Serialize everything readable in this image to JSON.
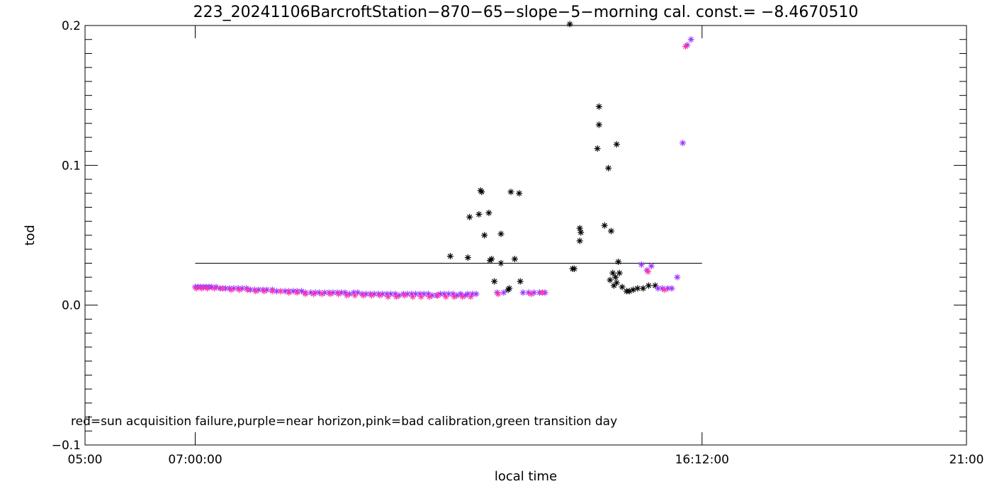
{
  "chart_data": {
    "type": "scatter",
    "title": "223_20241106BarcroftStation−870−65−slope−5−morning  cal. const.= −8.4670510",
    "xlabel": "local time",
    "ylabel": "tod",
    "annotation": "red=sun acquisition failure,purple=near horizon,pink=bad calibration,green transition day",
    "xlim": [
      5,
      21
    ],
    "ylim": [
      -0.1,
      0.2
    ],
    "x_tick_labels": [
      {
        "x": 5,
        "label": "05:00"
      },
      {
        "x": 7,
        "label": "07:00:00"
      },
      {
        "x": 16.2,
        "label": "16:12:00"
      },
      {
        "x": 21,
        "label": "21:00"
      }
    ],
    "y_tick_labels": [
      {
        "y": -0.1,
        "label": "−0.1"
      },
      {
        "y": 0.0,
        "label": "0.0"
      },
      {
        "y": 0.1,
        "label": "0.1"
      },
      {
        "y": 0.2,
        "label": "0.2"
      }
    ],
    "grid": false,
    "reference_line": {
      "x_start": 7.0,
      "x_end": 16.2,
      "y": 0.03
    },
    "colors": {
      "accepted": "#000000",
      "near_horizon": "#9933ff",
      "bad_calibration": "#ff33aa"
    },
    "series": [
      {
        "category": "accepted",
        "color": "#000000",
        "points": [
          [
            11.63,
            0.035
          ],
          [
            11.98,
            0.063
          ],
          [
            11.95,
            0.034
          ],
          [
            12.18,
            0.082
          ],
          [
            12.2,
            0.081
          ],
          [
            12.15,
            0.065
          ],
          [
            12.25,
            0.05
          ],
          [
            12.33,
            0.066
          ],
          [
            12.38,
            0.033
          ],
          [
            12.35,
            0.032
          ],
          [
            12.43,
            0.017
          ],
          [
            12.55,
            0.051
          ],
          [
            12.55,
            0.03
          ],
          [
            12.73,
            0.081
          ],
          [
            12.88,
            0.08
          ],
          [
            12.8,
            0.033
          ],
          [
            12.9,
            0.017
          ],
          [
            12.7,
            0.012
          ],
          [
            12.68,
            0.011
          ],
          [
            13.8,
            0.201
          ],
          [
            13.98,
            0.055
          ],
          [
            13.98,
            0.046
          ],
          [
            14.0,
            0.052
          ],
          [
            13.85,
            0.026
          ],
          [
            13.88,
            0.026
          ],
          [
            14.33,
            0.142
          ],
          [
            14.33,
            0.129
          ],
          [
            14.3,
            0.112
          ],
          [
            14.65,
            0.115
          ],
          [
            14.5,
            0.098
          ],
          [
            14.43,
            0.057
          ],
          [
            14.55,
            0.053
          ],
          [
            14.68,
            0.031
          ],
          [
            14.7,
            0.023
          ],
          [
            14.53,
            0.018
          ],
          [
            14.58,
            0.023
          ],
          [
            14.6,
            0.014
          ],
          [
            14.63,
            0.02
          ],
          [
            14.65,
            0.016
          ],
          [
            14.75,
            0.013
          ],
          [
            14.83,
            0.01
          ],
          [
            14.88,
            0.01
          ],
          [
            14.95,
            0.011
          ],
          [
            15.03,
            0.012
          ],
          [
            15.13,
            0.012
          ],
          [
            15.23,
            0.014
          ],
          [
            15.35,
            0.014
          ]
        ]
      },
      {
        "category": "flagged",
        "color": "#9933ff",
        "points": [
          [
            7.0,
            0.013
          ],
          [
            7.05,
            0.013
          ],
          [
            7.1,
            0.013
          ],
          [
            7.15,
            0.013
          ],
          [
            7.2,
            0.013
          ],
          [
            7.25,
            0.013
          ],
          [
            7.3,
            0.013
          ],
          [
            7.38,
            0.013
          ],
          [
            7.45,
            0.012
          ],
          [
            7.55,
            0.012
          ],
          [
            7.62,
            0.012
          ],
          [
            7.7,
            0.012
          ],
          [
            7.78,
            0.012
          ],
          [
            7.85,
            0.012
          ],
          [
            7.93,
            0.012
          ],
          [
            8.0,
            0.011
          ],
          [
            8.08,
            0.011
          ],
          [
            8.15,
            0.011
          ],
          [
            8.23,
            0.011
          ],
          [
            8.3,
            0.011
          ],
          [
            8.4,
            0.011
          ],
          [
            8.48,
            0.01
          ],
          [
            8.55,
            0.01
          ],
          [
            8.63,
            0.01
          ],
          [
            8.7,
            0.01
          ],
          [
            8.78,
            0.01
          ],
          [
            8.85,
            0.01
          ],
          [
            8.93,
            0.01
          ],
          [
            9.0,
            0.009
          ],
          [
            9.1,
            0.009
          ],
          [
            9.18,
            0.009
          ],
          [
            9.25,
            0.009
          ],
          [
            9.35,
            0.009
          ],
          [
            9.43,
            0.009
          ],
          [
            9.5,
            0.009
          ],
          [
            9.58,
            0.009
          ],
          [
            9.65,
            0.009
          ],
          [
            9.72,
            0.009
          ],
          [
            9.8,
            0.008
          ],
          [
            9.88,
            0.009
          ],
          [
            9.95,
            0.009
          ],
          [
            10.03,
            0.008
          ],
          [
            10.1,
            0.008
          ],
          [
            10.18,
            0.008
          ],
          [
            10.25,
            0.008
          ],
          [
            10.33,
            0.008
          ],
          [
            10.4,
            0.008
          ],
          [
            10.48,
            0.008
          ],
          [
            10.55,
            0.008
          ],
          [
            10.63,
            0.008
          ],
          [
            10.7,
            0.007
          ],
          [
            10.78,
            0.008
          ],
          [
            10.85,
            0.008
          ],
          [
            10.93,
            0.008
          ],
          [
            11.0,
            0.008
          ],
          [
            11.08,
            0.008
          ],
          [
            11.15,
            0.008
          ],
          [
            11.23,
            0.008
          ],
          [
            11.3,
            0.007
          ],
          [
            11.38,
            0.007
          ],
          [
            11.45,
            0.008
          ],
          [
            11.52,
            0.008
          ],
          [
            11.6,
            0.008
          ],
          [
            11.68,
            0.008
          ],
          [
            11.75,
            0.007
          ],
          [
            11.82,
            0.008
          ],
          [
            11.9,
            0.007
          ],
          [
            11.95,
            0.008
          ],
          [
            12.03,
            0.008
          ],
          [
            12.1,
            0.008
          ],
          [
            12.48,
            0.009
          ],
          [
            12.6,
            0.009
          ],
          [
            12.95,
            0.009
          ],
          [
            13.05,
            0.009
          ],
          [
            13.15,
            0.009
          ],
          [
            13.25,
            0.009
          ],
          [
            13.35,
            0.009
          ],
          [
            15.1,
            0.029
          ],
          [
            15.2,
            0.025
          ],
          [
            15.28,
            0.028
          ],
          [
            15.4,
            0.012
          ],
          [
            15.48,
            0.012
          ],
          [
            15.58,
            0.012
          ],
          [
            15.65,
            0.012
          ],
          [
            15.75,
            0.02
          ],
          [
            15.85,
            0.116
          ],
          [
            15.93,
            0.186
          ],
          [
            16.0,
            0.19
          ]
        ]
      },
      {
        "category": "bad_calibration",
        "color": "#ff33aa",
        "points": [
          [
            7.02,
            0.012
          ],
          [
            7.12,
            0.012
          ],
          [
            7.22,
            0.012
          ],
          [
            7.35,
            0.012
          ],
          [
            7.5,
            0.012
          ],
          [
            7.65,
            0.011
          ],
          [
            7.8,
            0.011
          ],
          [
            7.95,
            0.011
          ],
          [
            8.1,
            0.01
          ],
          [
            8.25,
            0.01
          ],
          [
            8.4,
            0.01
          ],
          [
            8.55,
            0.01
          ],
          [
            8.7,
            0.009
          ],
          [
            8.85,
            0.009
          ],
          [
            9.0,
            0.008
          ],
          [
            9.15,
            0.008
          ],
          [
            9.3,
            0.008
          ],
          [
            9.45,
            0.008
          ],
          [
            9.6,
            0.008
          ],
          [
            9.75,
            0.007
          ],
          [
            9.9,
            0.007
          ],
          [
            10.05,
            0.007
          ],
          [
            10.2,
            0.007
          ],
          [
            10.35,
            0.007
          ],
          [
            10.5,
            0.006
          ],
          [
            10.65,
            0.006
          ],
          [
            10.8,
            0.007
          ],
          [
            10.95,
            0.006
          ],
          [
            11.1,
            0.006
          ],
          [
            11.25,
            0.006
          ],
          [
            11.4,
            0.007
          ],
          [
            11.55,
            0.006
          ],
          [
            11.7,
            0.006
          ],
          [
            11.85,
            0.006
          ],
          [
            12.0,
            0.006
          ],
          [
            12.5,
            0.008
          ],
          [
            13.1,
            0.008
          ],
          [
            13.3,
            0.009
          ],
          [
            15.22,
            0.024
          ],
          [
            15.52,
            0.011
          ],
          [
            15.9,
            0.185
          ]
        ]
      }
    ]
  }
}
